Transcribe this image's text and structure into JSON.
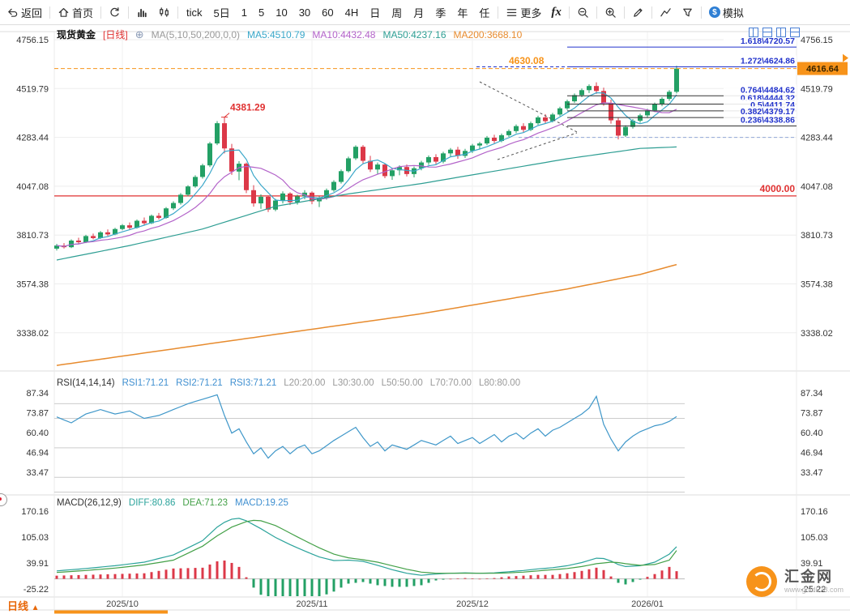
{
  "toolbar": {
    "back": "返回",
    "home": "首页",
    "periods": [
      "tick",
      "5日",
      "1",
      "5",
      "10",
      "30",
      "60",
      "4H",
      "日",
      "周",
      "月",
      "季",
      "年",
      "任"
    ],
    "active_period": "日",
    "more": "更多",
    "fx": "fx",
    "sim": "模拟",
    "sim_icon": "$"
  },
  "chart_header": {
    "symbol": "现货黄金",
    "period_tag": "[日线]",
    "add_icon": "⊕",
    "ma_label": "MA(5,10,50,200,0,0)",
    "ma_values": [
      {
        "label": "MA5:4510.79",
        "color": "#3aa7c9"
      },
      {
        "label": "MA10:4432.48",
        "color": "#b363c9"
      },
      {
        "label": "MA50:4237.16",
        "color": "#2e9e93"
      },
      {
        "label": "MA200:3668.10",
        "color": "#e78b2e"
      }
    ]
  },
  "rsi_header": {
    "title": "RSI(14,14,14)",
    "items": [
      {
        "label": "RSI1:71.21",
        "color": "#3f8fd0"
      },
      {
        "label": "RSI2:71.21",
        "color": "#3f8fd0"
      },
      {
        "label": "RSI3:71.21",
        "color": "#3f8fd0"
      },
      {
        "label": "L20:20.00",
        "color": "#9a9a9a"
      },
      {
        "label": "L30:30.00",
        "color": "#9a9a9a"
      },
      {
        "label": "L50:50.00",
        "color": "#9a9a9a"
      },
      {
        "label": "L70:70.00",
        "color": "#9a9a9a"
      },
      {
        "label": "L80:80.00",
        "color": "#9a9a9a"
      }
    ]
  },
  "macd_header": {
    "title": "MACD(26,12,9)",
    "items": [
      {
        "label": "DIFF:80.86",
        "color": "#2ba39b"
      },
      {
        "label": "DEA:71.23",
        "color": "#43a047"
      },
      {
        "label": "MACD:19.25",
        "color": "#3f8fd0"
      }
    ]
  },
  "bottom": {
    "tab": "日线",
    "arrow": "▲"
  },
  "watermark": {
    "name": "汇金网",
    "url": "www.gold678.com"
  },
  "chart_data": {
    "type": "candlestick",
    "symbol": "现货黄金",
    "period": "日线",
    "price_axis": {
      "ticks": [
        4756.15,
        4519.79,
        4283.44,
        4047.08,
        3810.73,
        3574.38,
        3338.02
      ]
    },
    "x_ticks": [
      {
        "i": 9,
        "label": "2025/10"
      },
      {
        "i": 35,
        "label": "2025/11"
      },
      {
        "i": 57,
        "label": "2025/12"
      },
      {
        "i": 81,
        "label": "2026/01"
      }
    ],
    "current_price": 4616.64,
    "high_annotation": {
      "i": 23,
      "price": 4381.29
    },
    "annotations": {
      "peak_label": "4381.29",
      "last_high": "4630.08",
      "current_badge": "4616.64"
    },
    "hline": {
      "price": 4000.0,
      "label": "4000.00",
      "color": "#e03131"
    },
    "fib": {
      "start_i": 70,
      "levels": [
        {
          "r": "1.618",
          "v": 4720.57,
          "label": "1.618\\4720.57"
        },
        {
          "r": "1.272",
          "v": 4624.86,
          "label": "1.272\\4624.86"
        },
        {
          "r": "0.764",
          "v": 4484.62,
          "label": "0.764\\4484.62"
        },
        {
          "r": "0.618",
          "v": 4444.32,
          "label": "0.618\\4444.32"
        },
        {
          "r": "0.5",
          "v": 4411.74,
          "label": "0.5\\4411.74"
        },
        {
          "r": "0.382",
          "v": 4379.17,
          "label": "0.382\\4379.17"
        },
        {
          "r": "0.236",
          "v": 4338.86,
          "label": "0.236\\4338.86"
        }
      ]
    },
    "candles": [
      [
        3745,
        3768,
        3736,
        3760
      ],
      [
        3760,
        3772,
        3746,
        3752
      ],
      [
        3752,
        3790,
        3748,
        3784
      ],
      [
        3784,
        3798,
        3768,
        3776
      ],
      [
        3776,
        3812,
        3772,
        3806
      ],
      [
        3806,
        3818,
        3790,
        3796
      ],
      [
        3796,
        3830,
        3792,
        3824
      ],
      [
        3824,
        3838,
        3806,
        3814
      ],
      [
        3814,
        3846,
        3810,
        3840
      ],
      [
        3840,
        3864,
        3834,
        3858
      ],
      [
        3858,
        3872,
        3838,
        3846
      ],
      [
        3846,
        3886,
        3842,
        3880
      ],
      [
        3880,
        3896,
        3860,
        3868
      ],
      [
        3868,
        3910,
        3864,
        3904
      ],
      [
        3904,
        3918,
        3886,
        3894
      ],
      [
        3894,
        3946,
        3890,
        3940
      ],
      [
        3940,
        3974,
        3932,
        3966
      ],
      [
        3966,
        4014,
        3958,
        4006
      ],
      [
        4006,
        4052,
        3998,
        4046
      ],
      [
        4046,
        4100,
        4040,
        4092
      ],
      [
        4092,
        4156,
        4084,
        4148
      ],
      [
        4148,
        4262,
        4140,
        4254
      ],
      [
        4254,
        4362,
        4246,
        4352
      ],
      [
        4352,
        4381.29,
        4206,
        4230
      ],
      [
        4230,
        4252,
        4102,
        4118
      ],
      [
        4118,
        4168,
        4076,
        4156
      ],
      [
        4156,
        4162,
        4014,
        4028
      ],
      [
        4028,
        4052,
        3948,
        3964
      ],
      [
        3964,
        4008,
        3938,
        3996
      ],
      [
        3996,
        4002,
        3922,
        3934
      ],
      [
        3934,
        3986,
        3926,
        3978
      ],
      [
        3978,
        4022,
        3964,
        4012
      ],
      [
        4012,
        4018,
        3956,
        3970
      ],
      [
        3970,
        4006,
        3958,
        3998
      ],
      [
        3998,
        4028,
        3984,
        4016
      ],
      [
        4016,
        4022,
        3960,
        3974
      ],
      [
        3974,
        3998,
        3946,
        3990
      ],
      [
        3990,
        4036,
        3982,
        4028
      ],
      [
        4028,
        4076,
        4020,
        4068
      ],
      [
        4068,
        4128,
        4060,
        4120
      ],
      [
        4120,
        4190,
        4114,
        4182
      ],
      [
        4182,
        4245,
        4174,
        4238
      ],
      [
        4238,
        4246,
        4158,
        4170
      ],
      [
        4170,
        4194,
        4116,
        4128
      ],
      [
        4128,
        4162,
        4104,
        4152
      ],
      [
        4152,
        4158,
        4086,
        4096
      ],
      [
        4096,
        4134,
        4078,
        4124
      ],
      [
        4124,
        4148,
        4100,
        4140
      ],
      [
        4140,
        4152,
        4094,
        4106
      ],
      [
        4106,
        4142,
        4090,
        4134
      ],
      [
        4134,
        4170,
        4124,
        4162
      ],
      [
        4162,
        4196,
        4150,
        4188
      ],
      [
        4188,
        4202,
        4154,
        4166
      ],
      [
        4166,
        4214,
        4158,
        4206
      ],
      [
        4206,
        4232,
        4188,
        4224
      ],
      [
        4224,
        4238,
        4180,
        4194
      ],
      [
        4194,
        4228,
        4184,
        4218
      ],
      [
        4218,
        4252,
        4208,
        4244
      ],
      [
        4244,
        4262,
        4226,
        4254
      ],
      [
        4254,
        4290,
        4246,
        4282
      ],
      [
        4282,
        4296,
        4256,
        4266
      ],
      [
        4266,
        4302,
        4260,
        4294
      ],
      [
        4294,
        4322,
        4286,
        4314
      ],
      [
        4314,
        4346,
        4304,
        4338
      ],
      [
        4338,
        4352,
        4308,
        4320
      ],
      [
        4320,
        4360,
        4314,
        4352
      ],
      [
        4352,
        4388,
        4344,
        4380
      ],
      [
        4380,
        4396,
        4350,
        4362
      ],
      [
        4362,
        4402,
        4356,
        4394
      ],
      [
        4394,
        4432,
        4386,
        4424
      ],
      [
        4424,
        4466,
        4416,
        4458
      ],
      [
        4458,
        4496,
        4450,
        4488
      ],
      [
        4488,
        4520,
        4478,
        4512
      ],
      [
        4512,
        4540,
        4498,
        4532
      ],
      [
        4532,
        4549.8,
        4494,
        4508
      ],
      [
        4508,
        4524,
        4436,
        4450
      ],
      [
        4450,
        4466,
        4350,
        4366
      ],
      [
        4366,
        4380,
        4273.7,
        4292
      ],
      [
        4292,
        4342,
        4286,
        4334
      ],
      [
        4334,
        4372,
        4326,
        4364
      ],
      [
        4364,
        4398,
        4354,
        4390
      ],
      [
        4390,
        4422,
        4380,
        4414
      ],
      [
        4414,
        4452,
        4406,
        4444
      ],
      [
        4444,
        4478,
        4434,
        4470
      ],
      [
        4470,
        4512,
        4460,
        4504
      ],
      [
        4504,
        4630.08,
        4496,
        4616.64
      ]
    ],
    "ma50_keys": [
      [
        0,
        3690
      ],
      [
        10,
        3760
      ],
      [
        20,
        3840
      ],
      [
        30,
        3950
      ],
      [
        40,
        4010
      ],
      [
        50,
        4060
      ],
      [
        60,
        4120
      ],
      [
        70,
        4180
      ],
      [
        80,
        4230
      ],
      [
        85,
        4237.16
      ]
    ],
    "ma200_keys": [
      [
        0,
        3180
      ],
      [
        10,
        3230
      ],
      [
        20,
        3280
      ],
      [
        30,
        3330
      ],
      [
        40,
        3380
      ],
      [
        50,
        3430
      ],
      [
        60,
        3490
      ],
      [
        70,
        3550
      ],
      [
        80,
        3620
      ],
      [
        85,
        3668.1
      ]
    ],
    "rsi": {
      "ticks": [
        87.34,
        73.87,
        60.4,
        46.94,
        33.47
      ],
      "levels": [
        20,
        30,
        50,
        70,
        80
      ],
      "keys": [
        [
          0,
          71
        ],
        [
          2,
          67
        ],
        [
          4,
          73
        ],
        [
          6,
          76
        ],
        [
          8,
          73
        ],
        [
          10,
          75
        ],
        [
          12,
          70
        ],
        [
          14,
          72
        ],
        [
          16,
          76
        ],
        [
          18,
          80
        ],
        [
          20,
          83
        ],
        [
          22,
          86
        ],
        [
          23,
          72
        ],
        [
          24,
          60
        ],
        [
          25,
          63
        ],
        [
          26,
          54
        ],
        [
          27,
          46
        ],
        [
          28,
          50
        ],
        [
          29,
          43
        ],
        [
          30,
          48
        ],
        [
          31,
          51
        ],
        [
          32,
          46
        ],
        [
          33,
          50
        ],
        [
          34,
          52
        ],
        [
          35,
          46
        ],
        [
          36,
          48
        ],
        [
          38,
          55
        ],
        [
          40,
          61
        ],
        [
          41,
          64
        ],
        [
          42,
          57
        ],
        [
          43,
          51
        ],
        [
          44,
          54
        ],
        [
          45,
          48
        ],
        [
          46,
          52
        ],
        [
          48,
          49
        ],
        [
          50,
          55
        ],
        [
          52,
          52
        ],
        [
          54,
          58
        ],
        [
          55,
          53
        ],
        [
          56,
          55
        ],
        [
          57,
          57
        ],
        [
          58,
          53
        ],
        [
          59,
          56
        ],
        [
          60,
          59
        ],
        [
          61,
          54
        ],
        [
          62,
          58
        ],
        [
          63,
          60
        ],
        [
          64,
          56
        ],
        [
          65,
          60
        ],
        [
          66,
          63
        ],
        [
          67,
          58
        ],
        [
          68,
          62
        ],
        [
          69,
          64
        ],
        [
          70,
          67
        ],
        [
          71,
          70
        ],
        [
          72,
          73
        ],
        [
          73,
          77
        ],
        [
          74,
          85
        ],
        [
          75,
          66
        ],
        [
          76,
          56
        ],
        [
          77,
          48
        ],
        [
          78,
          54
        ],
        [
          79,
          58
        ],
        [
          80,
          61
        ],
        [
          81,
          63
        ],
        [
          82,
          65
        ],
        [
          83,
          66
        ],
        [
          84,
          68
        ],
        [
          85,
          71.21
        ]
      ]
    },
    "macd": {
      "ticks": [
        170.16,
        105.03,
        39.91,
        -25.22
      ],
      "diff_keys": [
        [
          0,
          20
        ],
        [
          4,
          26
        ],
        [
          8,
          33
        ],
        [
          12,
          42
        ],
        [
          16,
          60
        ],
        [
          20,
          96
        ],
        [
          22,
          130
        ],
        [
          23,
          142
        ],
        [
          24,
          150
        ],
        [
          25,
          152
        ],
        [
          26,
          146
        ],
        [
          28,
          126
        ],
        [
          30,
          104
        ],
        [
          32,
          86
        ],
        [
          34,
          70
        ],
        [
          36,
          55
        ],
        [
          38,
          46
        ],
        [
          40,
          47
        ],
        [
          42,
          44
        ],
        [
          44,
          34
        ],
        [
          46,
          23
        ],
        [
          48,
          14
        ],
        [
          50,
          9
        ],
        [
          52,
          12
        ],
        [
          54,
          14
        ],
        [
          56,
          15
        ],
        [
          58,
          14
        ],
        [
          60,
          15
        ],
        [
          62,
          18
        ],
        [
          64,
          21
        ],
        [
          66,
          25
        ],
        [
          68,
          28
        ],
        [
          70,
          33
        ],
        [
          72,
          41
        ],
        [
          74,
          52
        ],
        [
          75,
          51
        ],
        [
          76,
          45
        ],
        [
          77,
          36
        ],
        [
          78,
          31
        ],
        [
          80,
          33
        ],
        [
          82,
          42
        ],
        [
          84,
          62
        ],
        [
          85,
          80.86
        ]
      ],
      "dea_keys": [
        [
          0,
          16
        ],
        [
          4,
          21
        ],
        [
          8,
          27
        ],
        [
          12,
          35
        ],
        [
          16,
          47
        ],
        [
          20,
          82
        ],
        [
          22,
          108
        ],
        [
          24,
          130
        ],
        [
          26,
          144
        ],
        [
          27,
          147
        ],
        [
          28,
          146
        ],
        [
          30,
          134
        ],
        [
          32,
          115
        ],
        [
          34,
          96
        ],
        [
          36,
          78
        ],
        [
          38,
          62
        ],
        [
          40,
          53
        ],
        [
          42,
          48
        ],
        [
          44,
          42
        ],
        [
          46,
          33
        ],
        [
          48,
          24
        ],
        [
          50,
          17
        ],
        [
          52,
          14
        ],
        [
          54,
          14
        ],
        [
          56,
          14
        ],
        [
          58,
          14
        ],
        [
          60,
          14
        ],
        [
          62,
          15
        ],
        [
          64,
          17
        ],
        [
          66,
          20
        ],
        [
          68,
          23
        ],
        [
          70,
          26
        ],
        [
          72,
          31
        ],
        [
          74,
          38
        ],
        [
          76,
          42
        ],
        [
          77,
          41
        ],
        [
          78,
          38
        ],
        [
          80,
          34
        ],
        [
          82,
          36
        ],
        [
          84,
          47
        ],
        [
          85,
          71.23
        ]
      ]
    },
    "colors": {
      "up": "#23a065",
      "down": "#dc3848",
      "ma5": "#3aa7c9",
      "ma10": "#b363c9",
      "ma50": "#2e9e93",
      "ma200": "#e78b2e",
      "rsi": "#3f97c9",
      "diff": "#2ba39b",
      "dea": "#43a047",
      "macd_pos": "#dc3848",
      "macd_neg": "#23a065",
      "fib": "#2233cc",
      "current": "#f7931a",
      "hline": "#e03131"
    }
  }
}
